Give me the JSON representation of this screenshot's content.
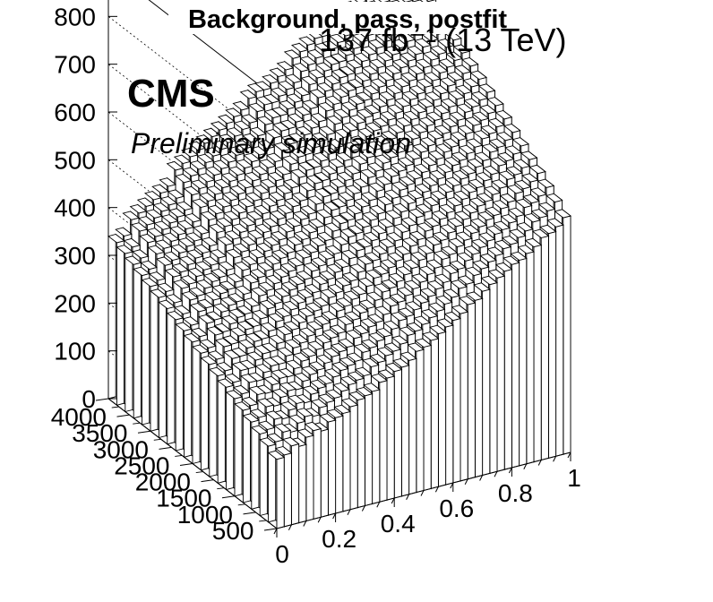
{
  "chart_data": {
    "type": "3d-bar (lego)",
    "title": "Background, pass, postfit",
    "luminosity_label": "137 fb⁻¹ (13 TeV)",
    "experiment": "CMS",
    "status": "Preliminary simulation",
    "x_axis": {
      "range": [
        0,
        1
      ],
      "ticks": [
        "0",
        "0.2",
        "0.4",
        "0.6",
        "0.8",
        "1"
      ]
    },
    "y_axis": {
      "range": [
        0,
        4000
      ],
      "ticks": [
        "500",
        "1000",
        "1500",
        "2000",
        "2500",
        "3000",
        "3500",
        "4000"
      ]
    },
    "z_axis": {
      "range": [
        0,
        900
      ],
      "ticks": [
        "0",
        "100",
        "200",
        "300",
        "400",
        "500",
        "600",
        "700",
        "800"
      ]
    },
    "x_bins": 40,
    "y_bins": 20,
    "front_row_values": [
      145,
      150,
      165,
      160,
      175,
      185,
      180,
      195,
      200,
      205,
      215,
      225,
      230,
      235,
      250,
      255,
      265,
      270,
      280,
      295,
      300,
      310,
      320,
      330,
      340,
      350,
      365,
      370,
      385,
      395,
      405,
      415,
      425,
      430,
      440,
      450,
      465,
      470,
      480,
      495
    ],
    "back_row_values": [
      340,
      380,
      400,
      420,
      460,
      480,
      500,
      520,
      540,
      570,
      580,
      600,
      630,
      650,
      660,
      680,
      700,
      720,
      740,
      760
    ]
  }
}
